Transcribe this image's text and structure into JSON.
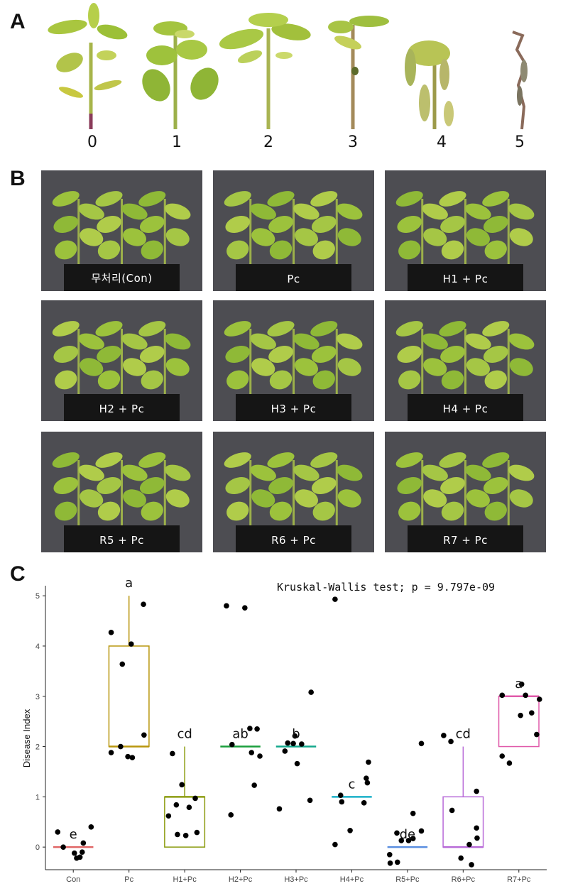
{
  "panel_a": {
    "letter": "A",
    "stages": [
      "0",
      "1",
      "2",
      "3",
      "4",
      "5"
    ]
  },
  "panel_b": {
    "letter": "B",
    "photos": [
      {
        "caption": "무처리(Con)"
      },
      {
        "caption": "Pc"
      },
      {
        "caption": "H1 + Pc"
      },
      {
        "caption": "H2 + Pc"
      },
      {
        "caption": "H3 + Pc"
      },
      {
        "caption": "H4 + Pc"
      },
      {
        "caption": "R5 + Pc"
      },
      {
        "caption": "R6 + Pc"
      },
      {
        "caption": "R7 + Pc"
      }
    ]
  },
  "panel_c": {
    "letter": "C"
  },
  "chart_data": {
    "type": "box",
    "title": "",
    "annotation": "Kruskal-Wallis test; p = 9.797e-09",
    "xlabel": "",
    "ylabel": "Disease Index",
    "ylim": [
      -0.45,
      5.2
    ],
    "yticks": [
      0,
      1,
      2,
      3,
      4,
      5
    ],
    "grid": false,
    "categories": [
      "Con",
      "Pc",
      "H1+Pc",
      "H2+Pc",
      "H3+Pc",
      "H4+Pc",
      "R5+Pc",
      "R6+Pc",
      "R7+Pc"
    ],
    "colors": [
      "#e06666",
      "#b8960c",
      "#8c9c10",
      "#1a9e3c",
      "#13a88c",
      "#19b0c8",
      "#5a8ee0",
      "#b86ad8",
      "#e05aaa"
    ],
    "boxes": [
      {
        "q1": 0,
        "median": 0,
        "q3": 0,
        "whisker_low": 0,
        "whisker_high": 0
      },
      {
        "q1": 2,
        "median": 2,
        "q3": 4,
        "whisker_low": 2,
        "whisker_high": 5
      },
      {
        "q1": 0,
        "median": 1,
        "q3": 1,
        "whisker_low": 0,
        "whisker_high": 2
      },
      {
        "q1": 2,
        "median": 2,
        "q3": 2,
        "whisker_low": 2,
        "whisker_high": 2
      },
      {
        "q1": 2,
        "median": 2,
        "q3": 2,
        "whisker_low": 2,
        "whisker_high": 2
      },
      {
        "q1": 1,
        "median": 1,
        "q3": 1,
        "whisker_low": 1,
        "whisker_high": 1
      },
      {
        "q1": 0,
        "median": 0,
        "q3": 0,
        "whisker_low": 0,
        "whisker_high": 0
      },
      {
        "q1": 0,
        "median": 0,
        "q3": 1,
        "whisker_low": 0,
        "whisker_high": 2
      },
      {
        "q1": 2,
        "median": 3,
        "q3": 3,
        "whisker_low": 2,
        "whisker_high": 3
      }
    ],
    "letters": [
      "e",
      "a",
      "cd",
      "ab",
      "b",
      "c",
      "de",
      "cd",
      "a"
    ],
    "points": [
      [
        {
          "dx": -0.28,
          "y": 0.3
        },
        {
          "dx": -0.18,
          "y": 0.0
        },
        {
          "dx": 0.02,
          "y": -0.12
        },
        {
          "dx": 0.06,
          "y": -0.22
        },
        {
          "dx": 0.12,
          "y": -0.2
        },
        {
          "dx": 0.16,
          "y": -0.1
        },
        {
          "dx": 0.18,
          "y": 0.08
        },
        {
          "dx": 0.32,
          "y": 0.4
        }
      ],
      [
        {
          "dx": -0.32,
          "y": 4.27
        },
        {
          "dx": -0.32,
          "y": 1.88
        },
        {
          "dx": -0.15,
          "y": 2.0
        },
        {
          "dx": -0.12,
          "y": 3.64
        },
        {
          "dx": -0.02,
          "y": 1.8
        },
        {
          "dx": 0.04,
          "y": 4.04
        },
        {
          "dx": 0.06,
          "y": 1.78
        },
        {
          "dx": 0.26,
          "y": 4.83
        },
        {
          "dx": 0.27,
          "y": 2.23
        }
      ],
      [
        {
          "dx": -0.29,
          "y": 0.62
        },
        {
          "dx": -0.22,
          "y": 1.86
        },
        {
          "dx": -0.15,
          "y": 0.84
        },
        {
          "dx": -0.13,
          "y": 0.25
        },
        {
          "dx": -0.05,
          "y": 1.24
        },
        {
          "dx": 0.02,
          "y": 0.23
        },
        {
          "dx": 0.08,
          "y": 0.79
        },
        {
          "dx": 0.19,
          "y": 0.97
        },
        {
          "dx": 0.22,
          "y": 0.29
        }
      ],
      [
        {
          "dx": -0.25,
          "y": 4.8
        },
        {
          "dx": -0.17,
          "y": 0.64
        },
        {
          "dx": -0.15,
          "y": 2.04
        },
        {
          "dx": 0.08,
          "y": 4.76
        },
        {
          "dx": 0.17,
          "y": 2.36
        },
        {
          "dx": 0.2,
          "y": 1.88
        },
        {
          "dx": 0.25,
          "y": 1.23
        },
        {
          "dx": 0.3,
          "y": 2.35
        },
        {
          "dx": 0.35,
          "y": 1.81
        }
      ],
      [
        {
          "dx": -0.3,
          "y": 0.76
        },
        {
          "dx": -0.2,
          "y": 1.91
        },
        {
          "dx": -0.15,
          "y": 2.07
        },
        {
          "dx": -0.05,
          "y": 2.06
        },
        {
          "dx": -0.02,
          "y": 2.21
        },
        {
          "dx": 0.02,
          "y": 1.66
        },
        {
          "dx": 0.1,
          "y": 2.05
        },
        {
          "dx": 0.25,
          "y": 0.93
        },
        {
          "dx": 0.27,
          "y": 3.08
        }
      ],
      [
        {
          "dx": -0.3,
          "y": 4.93
        },
        {
          "dx": -0.3,
          "y": 0.05
        },
        {
          "dx": -0.2,
          "y": 1.03
        },
        {
          "dx": -0.18,
          "y": 0.9
        },
        {
          "dx": -0.03,
          "y": 0.33
        },
        {
          "dx": 0.22,
          "y": 0.88
        },
        {
          "dx": 0.26,
          "y": 1.37
        },
        {
          "dx": 0.28,
          "y": 1.28
        },
        {
          "dx": 0.3,
          "y": 1.69
        }
      ],
      [
        {
          "dx": -0.32,
          "y": -0.15
        },
        {
          "dx": -0.31,
          "y": -0.32
        },
        {
          "dx": -0.19,
          "y": 0.28
        },
        {
          "dx": -0.18,
          "y": -0.3
        },
        {
          "dx": -0.11,
          "y": 0.13
        },
        {
          "dx": 0.02,
          "y": 0.13
        },
        {
          "dx": 0.1,
          "y": 0.17
        },
        {
          "dx": 0.1,
          "y": 0.67
        },
        {
          "dx": 0.25,
          "y": 2.06
        },
        {
          "dx": 0.25,
          "y": 0.32
        }
      ],
      [
        {
          "dx": -0.35,
          "y": 2.22
        },
        {
          "dx": -0.22,
          "y": 2.1
        },
        {
          "dx": -0.2,
          "y": 0.73
        },
        {
          "dx": -0.04,
          "y": -0.22
        },
        {
          "dx": 0.11,
          "y": 0.05
        },
        {
          "dx": 0.15,
          "y": -0.35
        },
        {
          "dx": 0.24,
          "y": 1.11
        },
        {
          "dx": 0.24,
          "y": 0.38
        },
        {
          "dx": 0.25,
          "y": 0.18
        }
      ],
      [
        {
          "dx": -0.3,
          "y": 3.02
        },
        {
          "dx": -0.3,
          "y": 1.81
        },
        {
          "dx": -0.17,
          "y": 1.67
        },
        {
          "dx": 0.03,
          "y": 2.62
        },
        {
          "dx": 0.05,
          "y": 3.24
        },
        {
          "dx": 0.12,
          "y": 3.02
        },
        {
          "dx": 0.23,
          "y": 2.67
        },
        {
          "dx": 0.32,
          "y": 2.24
        },
        {
          "dx": 0.37,
          "y": 2.94
        }
      ]
    ]
  }
}
